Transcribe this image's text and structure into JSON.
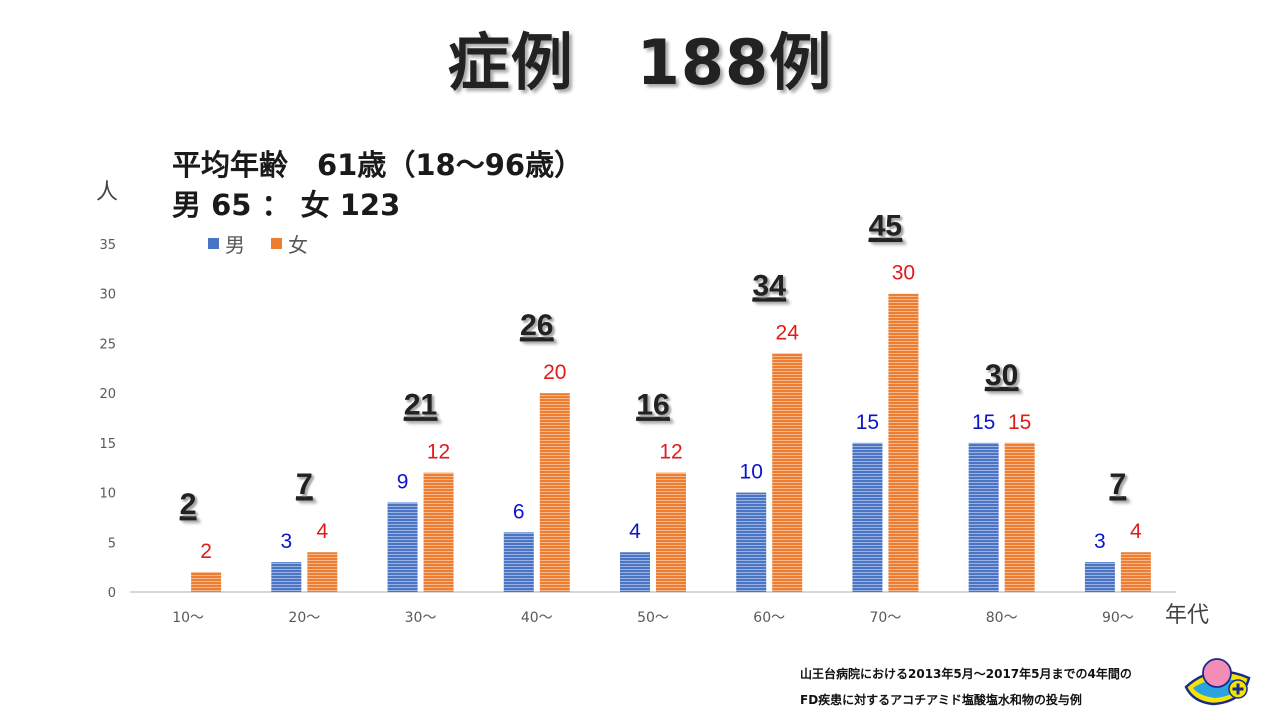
{
  "title": "症例　188例",
  "summary": {
    "line1": "平均年齢　61歳（18〜96歳）",
    "line2": "男 65 ： 女 123"
  },
  "axis_units": {
    "y": "人",
    "x": "年代"
  },
  "footnote": {
    "line1": "山王台病院における2013年5月〜2017年5月までの4年間の",
    "line2": "FD疾患に対するアコチアミド塩酸塩水和物の投与例"
  },
  "colors": {
    "male": "#4a74c4",
    "female": "#ed7d31",
    "male_label": "#0d14c8",
    "female_label": "#e11a1a"
  },
  "chart_data": {
    "type": "bar",
    "categories": [
      "10〜",
      "20〜",
      "30〜",
      "40〜",
      "50〜",
      "60〜",
      "70〜",
      "80〜",
      "90〜"
    ],
    "series": [
      {
        "name": "男",
        "values": [
          null,
          3,
          9,
          6,
          4,
          10,
          15,
          15,
          3
        ]
      },
      {
        "name": "女",
        "values": [
          2,
          4,
          12,
          20,
          12,
          24,
          30,
          15,
          4
        ]
      }
    ],
    "totals": [
      2,
      7,
      21,
      26,
      16,
      34,
      45,
      30,
      7
    ],
    "ylim": [
      0,
      35
    ],
    "yticks": [
      0,
      5,
      10,
      15,
      20,
      25,
      30,
      35
    ],
    "xlabel": "年代",
    "ylabel": "人",
    "legend": "top-left",
    "grid": false
  }
}
